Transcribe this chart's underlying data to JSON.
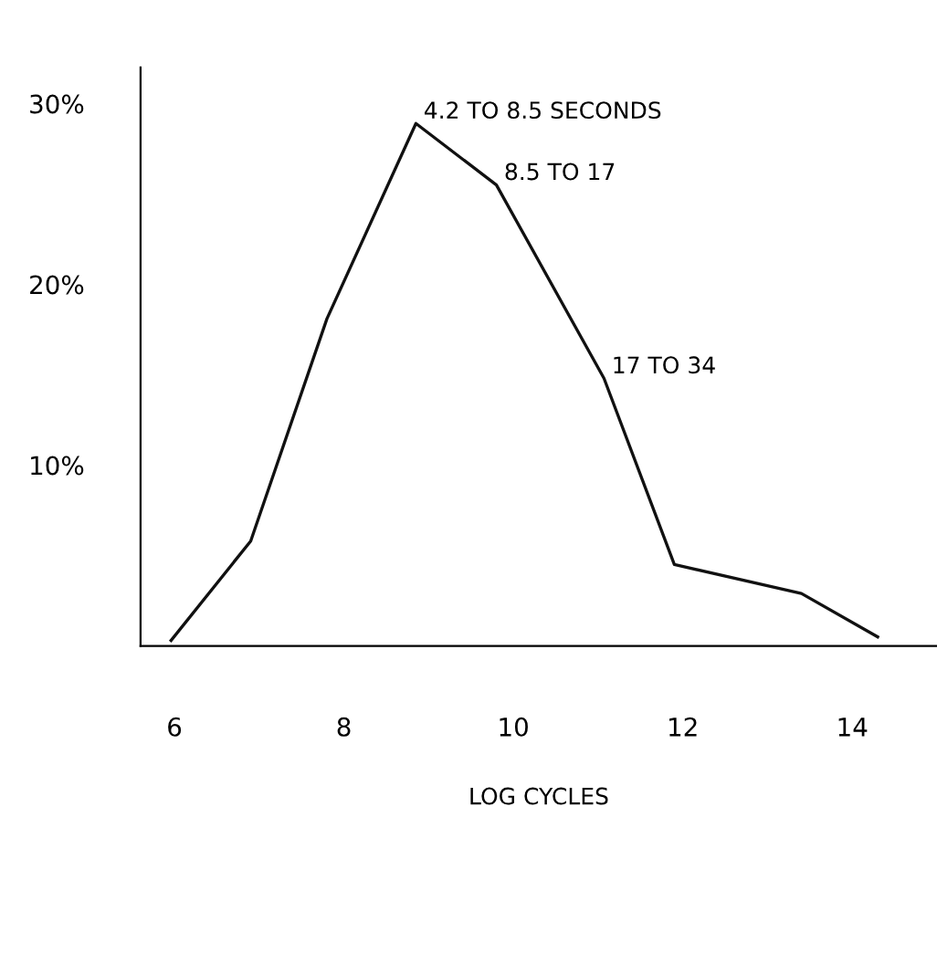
{
  "chart_data": {
    "type": "line",
    "xlabel": "LOG CYCLES",
    "x": [
      5.96,
      6.9,
      7.8,
      8.85,
      9.8,
      11.07,
      11.9,
      13.4,
      14.3
    ],
    "values": [
      0.3,
      5.8,
      18.1,
      28.9,
      25.5,
      14.8,
      4.5,
      2.9,
      0.5
    ],
    "color": "#111111",
    "marker": "none",
    "line_style": "solid",
    "grid": false,
    "legend": false,
    "xlim": [
      5.6,
      15.0
    ],
    "xticks": [
      6,
      8,
      10,
      12,
      14
    ],
    "ylim": [
      0,
      32
    ],
    "yticks": [
      {
        "value": 10,
        "label": "10%"
      },
      {
        "value": 20,
        "label": "20%"
      },
      {
        "value": 30,
        "label": "30%"
      }
    ],
    "annotations": [
      {
        "text": "4.2 TO 8.5 SECONDS",
        "x": 8.85,
        "y": 28.9
      },
      {
        "text": "8.5 TO 17",
        "x": 9.8,
        "y": 25.5
      },
      {
        "text": "17 TO 34",
        "x": 11.07,
        "y": 14.8
      }
    ]
  }
}
